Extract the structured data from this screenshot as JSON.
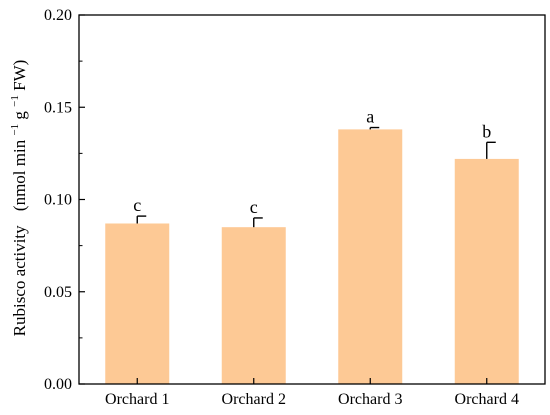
{
  "chart_data": {
    "type": "bar",
    "categories": [
      "Orchard 1",
      "Orchard 2",
      "Orchard 3",
      "Orchard 4"
    ],
    "values": [
      0.087,
      0.085,
      0.138,
      0.122
    ],
    "errors": [
      0.004,
      0.005,
      0.001,
      0.009
    ],
    "significance_labels": [
      "c",
      "c",
      "a",
      "b"
    ],
    "ylabel_main": "Rubisco activity",
    "ylabel_unit": "(nmol min",
    "ylabel_exp1": "−1",
    "ylabel_mid": " g",
    "ylabel_exp2": "−1",
    "ylabel_end": " FW)",
    "xlabel": "",
    "ylim": [
      0,
      0.2
    ],
    "yticks": [
      "0.00",
      "0.05",
      "0.10",
      "0.15",
      "0.20"
    ],
    "grid": false,
    "colors": {
      "bar": "#fdc995",
      "axis": "#000000"
    }
  }
}
